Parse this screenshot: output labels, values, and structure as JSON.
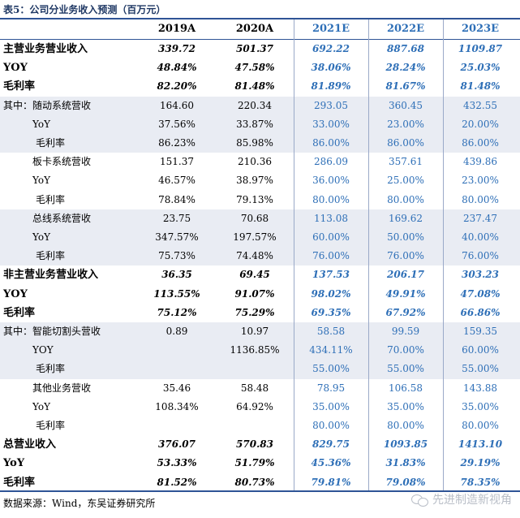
{
  "caption": "表5：公司分业务收入预测（百万元）",
  "columns": [
    "2019A",
    "2020A",
    "2021E",
    "2022E",
    "2023E"
  ],
  "rows": [
    {
      "label": "主营业务营业收入",
      "values": [
        "339.72",
        "501.37",
        "692.22",
        "887.68",
        "1109.87"
      ]
    },
    {
      "label": "YOY",
      "values": [
        "48.84%",
        "47.58%",
        "38.06%",
        "28.24%",
        "25.03%"
      ]
    },
    {
      "label": "毛利率",
      "values": [
        "82.20%",
        "81.48%",
        "81.89%",
        "81.67%",
        "81.48%"
      ]
    },
    {
      "label": "其中：随动系统营收",
      "values": [
        "164.60",
        "220.34",
        "293.05",
        "360.45",
        "432.55"
      ]
    },
    {
      "label": "YoY",
      "values": [
        "37.56%",
        "33.87%",
        "33.00%",
        "23.00%",
        "20.00%"
      ]
    },
    {
      "label": "毛利率",
      "values": [
        "86.23%",
        "85.98%",
        "86.00%",
        "86.00%",
        "86.00%"
      ]
    },
    {
      "label": "板卡系统营收",
      "values": [
        "151.37",
        "210.36",
        "286.09",
        "357.61",
        "439.86"
      ]
    },
    {
      "label": "YoY",
      "values": [
        "46.57%",
        "38.97%",
        "36.00%",
        "25.00%",
        "23.00%"
      ]
    },
    {
      "label": "毛利率",
      "values": [
        "78.84%",
        "79.13%",
        "80.00%",
        "80.00%",
        "80.00%"
      ]
    },
    {
      "label": "总线系统营收",
      "values": [
        "23.75",
        "70.68",
        "113.08",
        "169.62",
        "237.47"
      ]
    },
    {
      "label": "YoY",
      "values": [
        "347.57%",
        "197.57%",
        "60.00%",
        "50.00%",
        "40.00%"
      ]
    },
    {
      "label": "毛利率",
      "values": [
        "75.73%",
        "74.48%",
        "76.00%",
        "76.00%",
        "76.00%"
      ]
    },
    {
      "label": "非主营业务营业收入",
      "values": [
        "36.35",
        "69.45",
        "137.53",
        "206.17",
        "303.23"
      ]
    },
    {
      "label": "YOY",
      "values": [
        "113.55%",
        "91.07%",
        "98.02%",
        "49.91%",
        "47.08%"
      ]
    },
    {
      "label": "毛利率",
      "values": [
        "75.12%",
        "75.29%",
        "69.35%",
        "67.92%",
        "66.86%"
      ]
    },
    {
      "label": "其中：智能切割头营收",
      "values": [
        "0.89",
        "10.97",
        "58.58",
        "99.59",
        "159.35"
      ]
    },
    {
      "label": "YOY",
      "values": [
        "",
        "1136.85%",
        "434.11%",
        "70.00%",
        "60.00%"
      ]
    },
    {
      "label": "毛利率",
      "values": [
        "",
        "",
        "55.00%",
        "55.00%",
        "55.00%"
      ]
    },
    {
      "label": "其他业务营收",
      "values": [
        "35.46",
        "58.48",
        "78.95",
        "106.58",
        "143.88"
      ]
    },
    {
      "label": "YoY",
      "values": [
        "108.34%",
        "64.92%",
        "35.00%",
        "35.00%",
        "35.00%"
      ]
    },
    {
      "label": "毛利率",
      "values": [
        "",
        "",
        "80.00%",
        "80.00%",
        "80.00%"
      ]
    },
    {
      "label": "总营业收入",
      "values": [
        "376.07",
        "570.83",
        "829.75",
        "1093.85",
        "1413.10"
      ]
    },
    {
      "label": "YoY",
      "values": [
        "53.33%",
        "51.79%",
        "45.36%",
        "31.83%",
        "29.19%"
      ]
    },
    {
      "label": "毛利率",
      "values": [
        "81.52%",
        "80.73%",
        "79.81%",
        "79.08%",
        "78.35%"
      ]
    }
  ],
  "source": "数据来源：Wind，东吴证券研究所",
  "watermark": "先进制造新视角",
  "colors": {
    "header_rule": "#2f5496",
    "forecast_text": "#2e6fb7",
    "shade": "#e9ecf3"
  }
}
